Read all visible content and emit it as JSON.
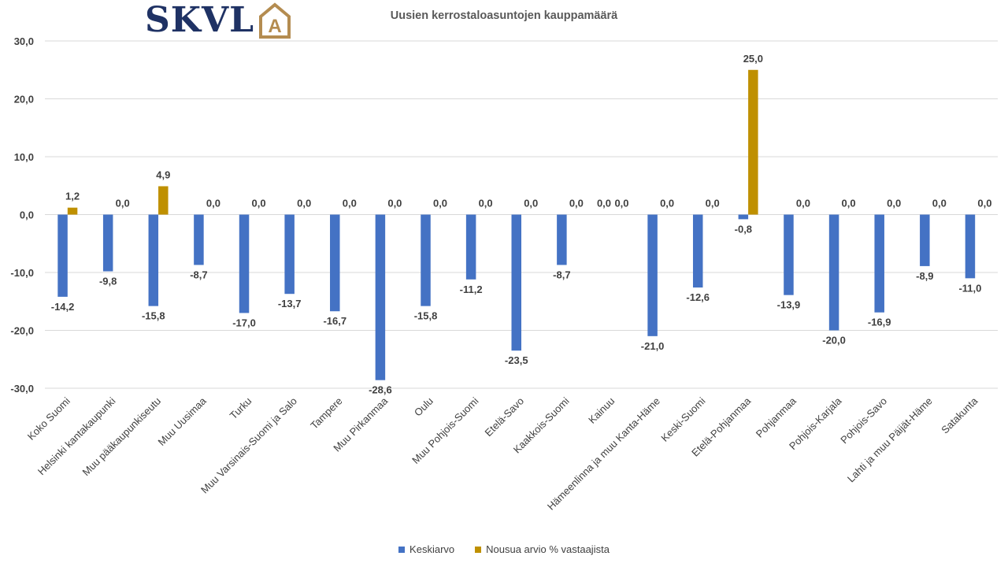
{
  "logo": {
    "text": "SKVL",
    "mark_letter": "A",
    "text_color": "#1F3264",
    "mark_color": "#B48C50"
  },
  "chart_data": {
    "type": "bar",
    "title": "Uusien kerrostaloasuntojen kauppamäärä",
    "xlabel": "",
    "ylabel": "",
    "ylim": [
      -30,
      30
    ],
    "yticks": [
      "30,0",
      "20,0",
      "10,0",
      "0,0",
      "-10,0",
      "-20,0",
      "-30,0"
    ],
    "grid": true,
    "legend_position": "bottom",
    "categories": [
      "Koko Suomi",
      "Helsinki kantakaupunki",
      "Muu pääkaupunkiseutu",
      "Muu Uusimaa",
      "Turku",
      "Muu Varsinais-Suomi ja Salo",
      "Tampere",
      "Muu Pirkanmaa",
      "Oulu",
      "Muu Pohjois-Suomi",
      "Etelä-Savo",
      "Kaakkois-Suomi",
      "Kainuu",
      "Hämeenlinna ja muu Kanta-Häme",
      "Keski-Suomi",
      "Etelä-Pohjanmaa",
      "Pohjanmaa",
      "Pohjois-Karjala",
      "Pohjois-Savo",
      "Lahti ja muu Päijät-Häme",
      "Satakunta"
    ],
    "series": [
      {
        "name": "Keskiarvo",
        "color": "#4472C4",
        "values": [
          -14.2,
          -9.8,
          -15.8,
          -8.7,
          -17.0,
          -13.7,
          -16.7,
          -28.6,
          -15.8,
          -11.2,
          -23.5,
          -8.7,
          0.0,
          -21.0,
          -12.6,
          -0.8,
          -13.9,
          -20.0,
          -16.9,
          -8.9,
          -11.0
        ],
        "labels": [
          "-14,2",
          "-9,8",
          "-15,8",
          "-8,7",
          "-17,0",
          "-13,7",
          "-16,7",
          "-28,6",
          "-15,8",
          "-11,2",
          "-23,5",
          "-8,7",
          "0,0",
          "-21,0",
          "-12,6",
          "-0,8",
          "-13,9",
          "-20,0",
          "-16,9",
          "-8,9",
          "-11,0"
        ]
      },
      {
        "name": "Nousua arvio % vastaajista",
        "color": "#BF9000",
        "values": [
          1.2,
          0.0,
          4.9,
          0.0,
          0.0,
          0.0,
          0.0,
          0.0,
          0.0,
          0.0,
          0.0,
          0.0,
          0.0,
          0.0,
          0.0,
          25.0,
          0.0,
          0.0,
          0.0,
          0.0,
          0.0
        ],
        "labels": [
          "1,2",
          "0,0",
          "4,9",
          "0,0",
          "0,0",
          "0,0",
          "0,0",
          "0,0",
          "0,0",
          "0,0",
          "0,0",
          "0,0",
          "0,0",
          "0,0",
          "0,0",
          "25,0",
          "0,0",
          "0,0",
          "0,0",
          "0,0",
          "0,0"
        ]
      }
    ]
  }
}
